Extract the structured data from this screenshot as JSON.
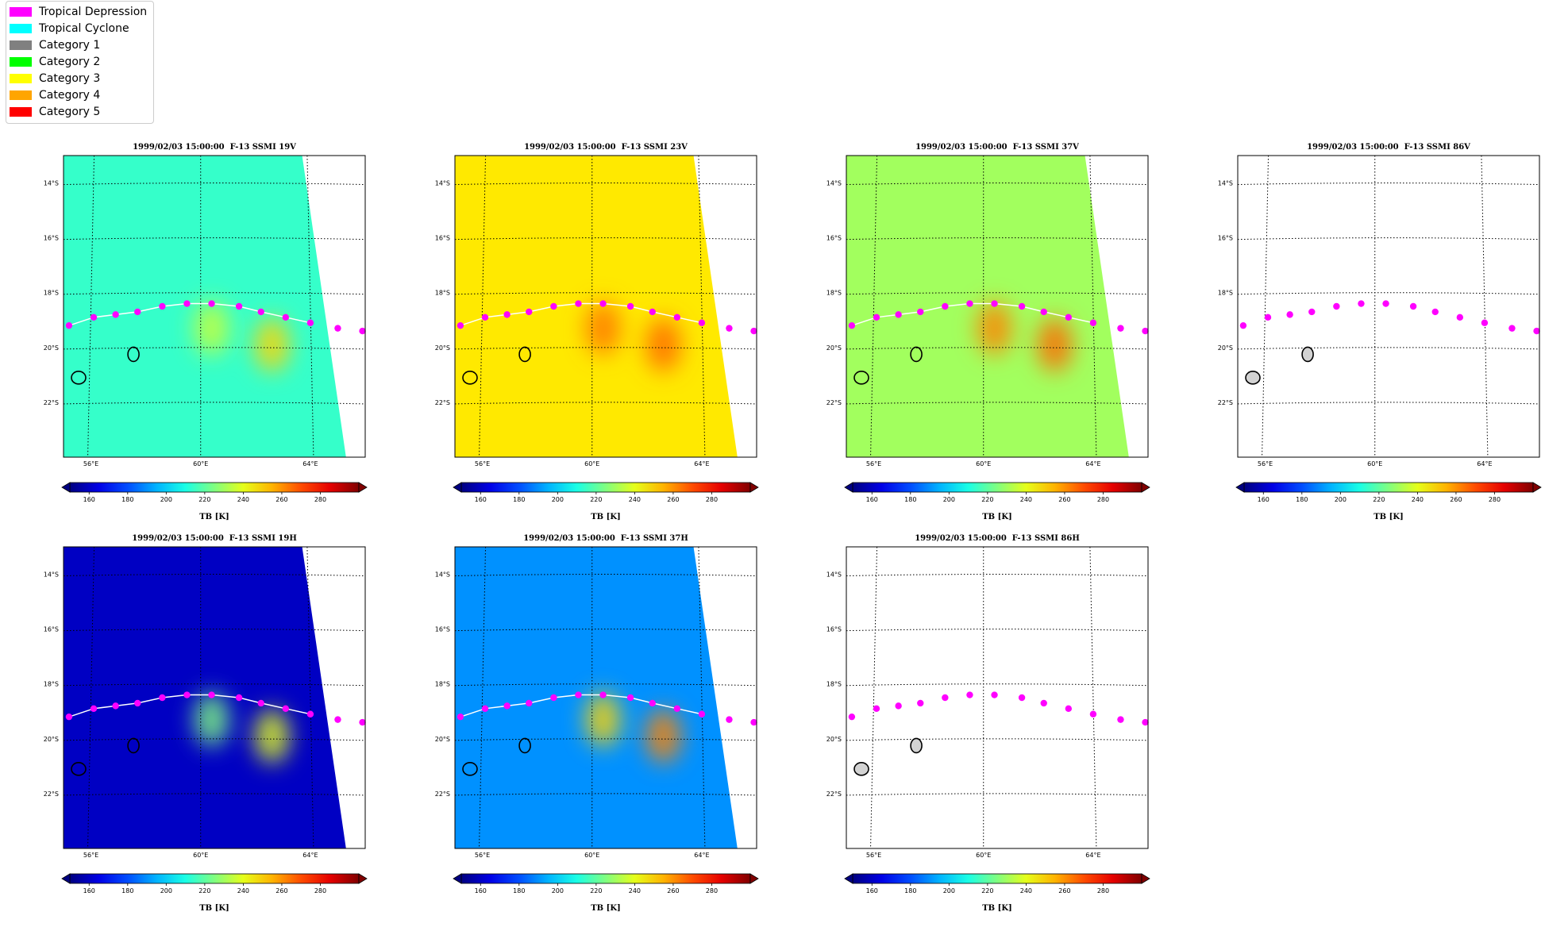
{
  "legend": {
    "items": [
      {
        "label": "Tropical Depression",
        "color": "#ff00ff"
      },
      {
        "label": "Tropical Cyclone",
        "color": "#00ffff"
      },
      {
        "label": "Category 1",
        "color": "#808080"
      },
      {
        "label": "Category 2",
        "color": "#00ff00"
      },
      {
        "label": "Category 3",
        "color": "#ffff00"
      },
      {
        "label": "Category 4",
        "color": "#ffa500"
      },
      {
        "label": "Category 5",
        "color": "#ff0000"
      }
    ]
  },
  "chart_data": [
    {
      "type": "heatmap",
      "title": "1999/02/03 15:00:00  F-13 SSMI 19V",
      "colorbar_label": "TB [K]",
      "colorbar_ticks": [
        160,
        180,
        200,
        220,
        240,
        260,
        280
      ],
      "colormap": "jet",
      "xlim": [
        55,
        66
      ],
      "ylim": [
        -24,
        -13
      ],
      "x_ticks": [
        "56°E",
        "60°E",
        "64°E"
      ],
      "y_ticks": [
        "14°S",
        "16°S",
        "18°S",
        "20°S",
        "22°S"
      ],
      "has_data": true,
      "base_tb": 214,
      "swath": true,
      "hotspots": [
        {
          "lon": 60.4,
          "lat": -19.3,
          "tb": 236
        },
        {
          "lon": 62.6,
          "lat": -19.9,
          "tb": 250
        }
      ],
      "track_color": "#ff00ff",
      "track": [
        {
          "lon": 55.2,
          "lat": -19.2
        },
        {
          "lon": 56.1,
          "lat": -18.9
        },
        {
          "lon": 56.9,
          "lat": -18.8
        },
        {
          "lon": 57.7,
          "lat": -18.7
        },
        {
          "lon": 58.6,
          "lat": -18.5
        },
        {
          "lon": 59.5,
          "lat": -18.4
        },
        {
          "lon": 60.4,
          "lat": -18.4
        },
        {
          "lon": 61.4,
          "lat": -18.5
        },
        {
          "lon": 62.2,
          "lat": -18.7
        },
        {
          "lon": 63.1,
          "lat": -18.9
        },
        {
          "lon": 64.0,
          "lat": -19.1
        },
        {
          "lon": 65.0,
          "lat": -19.3
        },
        {
          "lon": 65.9,
          "lat": -19.4
        }
      ]
    },
    {
      "type": "heatmap",
      "title": "1999/02/03 15:00:00  F-13 SSMI 23V",
      "colorbar_label": "TB [K]",
      "colorbar_ticks": [
        160,
        180,
        200,
        220,
        240,
        260,
        280
      ],
      "colormap": "jet",
      "xlim": [
        55,
        66
      ],
      "ylim": [
        -24,
        -13
      ],
      "x_ticks": [
        "56°E",
        "60°E",
        "64°E"
      ],
      "y_ticks": [
        "14°S",
        "16°S",
        "18°S",
        "20°S",
        "22°S"
      ],
      "has_data": true,
      "base_tb": 247,
      "swath": true,
      "hotspots": [
        {
          "lon": 60.4,
          "lat": -19.3,
          "tb": 264
        },
        {
          "lon": 62.6,
          "lat": -19.9,
          "tb": 266
        }
      ],
      "track_color": "#ff00ff",
      "track": [
        {
          "lon": 55.2,
          "lat": -19.2
        },
        {
          "lon": 56.1,
          "lat": -18.9
        },
        {
          "lon": 56.9,
          "lat": -18.8
        },
        {
          "lon": 57.7,
          "lat": -18.7
        },
        {
          "lon": 58.6,
          "lat": -18.5
        },
        {
          "lon": 59.5,
          "lat": -18.4
        },
        {
          "lon": 60.4,
          "lat": -18.4
        },
        {
          "lon": 61.4,
          "lat": -18.5
        },
        {
          "lon": 62.2,
          "lat": -18.7
        },
        {
          "lon": 63.1,
          "lat": -18.9
        },
        {
          "lon": 64.0,
          "lat": -19.1
        },
        {
          "lon": 65.0,
          "lat": -19.3
        },
        {
          "lon": 65.9,
          "lat": -19.4
        }
      ]
    },
    {
      "type": "heatmap",
      "title": "1999/02/03 15:00:00  F-13 SSMI 37V",
      "colorbar_label": "TB [K]",
      "colorbar_ticks": [
        160,
        180,
        200,
        220,
        240,
        260,
        280
      ],
      "colormap": "jet",
      "xlim": [
        55,
        66
      ],
      "ylim": [
        -24,
        -13
      ],
      "x_ticks": [
        "56°E",
        "60°E",
        "64°E"
      ],
      "y_ticks": [
        "14°S",
        "16°S",
        "18°S",
        "20°S",
        "22°S"
      ],
      "has_data": true,
      "base_tb": 230,
      "swath": true,
      "hotspots": [
        {
          "lon": 60.4,
          "lat": -19.3,
          "tb": 262
        },
        {
          "lon": 62.6,
          "lat": -19.9,
          "tb": 266
        }
      ],
      "track_color": "#ff00ff",
      "track": [
        {
          "lon": 55.2,
          "lat": -19.2
        },
        {
          "lon": 56.1,
          "lat": -18.9
        },
        {
          "lon": 56.9,
          "lat": -18.8
        },
        {
          "lon": 57.7,
          "lat": -18.7
        },
        {
          "lon": 58.6,
          "lat": -18.5
        },
        {
          "lon": 59.5,
          "lat": -18.4
        },
        {
          "lon": 60.4,
          "lat": -18.4
        },
        {
          "lon": 61.4,
          "lat": -18.5
        },
        {
          "lon": 62.2,
          "lat": -18.7
        },
        {
          "lon": 63.1,
          "lat": -18.9
        },
        {
          "lon": 64.0,
          "lat": -19.1
        },
        {
          "lon": 65.0,
          "lat": -19.3
        },
        {
          "lon": 65.9,
          "lat": -19.4
        }
      ]
    },
    {
      "type": "heatmap",
      "title": "1999/02/03 15:00:00  F-13 SSMI 86V",
      "colorbar_label": "TB [K]",
      "colorbar_ticks": [
        160,
        180,
        200,
        220,
        240,
        260,
        280
      ],
      "colormap": "jet",
      "xlim": [
        55,
        66
      ],
      "ylim": [
        -24,
        -13
      ],
      "x_ticks": [
        "56°E",
        "60°E",
        "64°E"
      ],
      "y_ticks": [
        "14°S",
        "16°S",
        "18°S",
        "20°S",
        "22°S"
      ],
      "has_data": false,
      "track_color": "#ff00ff",
      "track": [
        {
          "lon": 55.2,
          "lat": -19.2
        },
        {
          "lon": 56.1,
          "lat": -18.9
        },
        {
          "lon": 56.9,
          "lat": -18.8
        },
        {
          "lon": 57.7,
          "lat": -18.7
        },
        {
          "lon": 58.6,
          "lat": -18.5
        },
        {
          "lon": 59.5,
          "lat": -18.4
        },
        {
          "lon": 60.4,
          "lat": -18.4
        },
        {
          "lon": 61.4,
          "lat": -18.5
        },
        {
          "lon": 62.2,
          "lat": -18.7
        },
        {
          "lon": 63.1,
          "lat": -18.9
        },
        {
          "lon": 64.0,
          "lat": -19.1
        },
        {
          "lon": 65.0,
          "lat": -19.3
        },
        {
          "lon": 65.9,
          "lat": -19.4
        }
      ]
    },
    {
      "type": "heatmap",
      "title": "1999/02/03 15:00:00  F-13 SSMI 19H",
      "colorbar_label": "TB [K]",
      "colorbar_ticks": [
        160,
        180,
        200,
        220,
        240,
        260,
        280
      ],
      "colormap": "jet",
      "xlim": [
        55,
        66
      ],
      "ylim": [
        -24,
        -13
      ],
      "x_ticks": [
        "56°E",
        "60°E",
        "64°E"
      ],
      "y_ticks": [
        "14°S",
        "16°S",
        "18°S",
        "20°S",
        "22°S"
      ],
      "has_data": true,
      "base_tb": 160,
      "swath": true,
      "hotspots": [
        {
          "lon": 60.4,
          "lat": -19.3,
          "tb": 225
        },
        {
          "lon": 62.6,
          "lat": -19.9,
          "tb": 240
        }
      ],
      "track_color": "#ff00ff",
      "track": [
        {
          "lon": 55.2,
          "lat": -19.2
        },
        {
          "lon": 56.1,
          "lat": -18.9
        },
        {
          "lon": 56.9,
          "lat": -18.8
        },
        {
          "lon": 57.7,
          "lat": -18.7
        },
        {
          "lon": 58.6,
          "lat": -18.5
        },
        {
          "lon": 59.5,
          "lat": -18.4
        },
        {
          "lon": 60.4,
          "lat": -18.4
        },
        {
          "lon": 61.4,
          "lat": -18.5
        },
        {
          "lon": 62.2,
          "lat": -18.7
        },
        {
          "lon": 63.1,
          "lat": -18.9
        },
        {
          "lon": 64.0,
          "lat": -19.1
        },
        {
          "lon": 65.0,
          "lat": -19.3
        },
        {
          "lon": 65.9,
          "lat": -19.4
        }
      ]
    },
    {
      "type": "heatmap",
      "title": "1999/02/03 15:00:00  F-13 SSMI 37H",
      "colorbar_label": "TB [K]",
      "colorbar_ticks": [
        160,
        180,
        200,
        220,
        240,
        260,
        280
      ],
      "colormap": "jet",
      "xlim": [
        55,
        66
      ],
      "ylim": [
        -24,
        -13
      ],
      "x_ticks": [
        "56°E",
        "60°E",
        "64°E"
      ],
      "y_ticks": [
        "14°S",
        "16°S",
        "18°S",
        "20°S",
        "22°S"
      ],
      "has_data": true,
      "base_tb": 190,
      "swath": true,
      "hotspots": [
        {
          "lon": 60.4,
          "lat": -19.3,
          "tb": 250
        },
        {
          "lon": 62.6,
          "lat": -19.9,
          "tb": 262
        }
      ],
      "track_color": "#ff00ff",
      "track": [
        {
          "lon": 55.2,
          "lat": -19.2
        },
        {
          "lon": 56.1,
          "lat": -18.9
        },
        {
          "lon": 56.9,
          "lat": -18.8
        },
        {
          "lon": 57.7,
          "lat": -18.7
        },
        {
          "lon": 58.6,
          "lat": -18.5
        },
        {
          "lon": 59.5,
          "lat": -18.4
        },
        {
          "lon": 60.4,
          "lat": -18.4
        },
        {
          "lon": 61.4,
          "lat": -18.5
        },
        {
          "lon": 62.2,
          "lat": -18.7
        },
        {
          "lon": 63.1,
          "lat": -18.9
        },
        {
          "lon": 64.0,
          "lat": -19.1
        },
        {
          "lon": 65.0,
          "lat": -19.3
        },
        {
          "lon": 65.9,
          "lat": -19.4
        }
      ]
    },
    {
      "type": "heatmap",
      "title": "1999/02/03 15:00:00  F-13 SSMI 86H",
      "colorbar_label": "TB [K]",
      "colorbar_ticks": [
        160,
        180,
        200,
        220,
        240,
        260,
        280
      ],
      "colormap": "jet",
      "xlim": [
        55,
        66
      ],
      "ylim": [
        -24,
        -13
      ],
      "x_ticks": [
        "56°E",
        "60°E",
        "64°E"
      ],
      "y_ticks": [
        "14°S",
        "16°S",
        "18°S",
        "20°S",
        "22°S"
      ],
      "has_data": false,
      "track_color": "#ff00ff",
      "track": [
        {
          "lon": 55.2,
          "lat": -19.2
        },
        {
          "lon": 56.1,
          "lat": -18.9
        },
        {
          "lon": 56.9,
          "lat": -18.8
        },
        {
          "lon": 57.7,
          "lat": -18.7
        },
        {
          "lon": 58.6,
          "lat": -18.5
        },
        {
          "lon": 59.5,
          "lat": -18.4
        },
        {
          "lon": 60.4,
          "lat": -18.4
        },
        {
          "lon": 61.4,
          "lat": -18.5
        },
        {
          "lon": 62.2,
          "lat": -18.7
        },
        {
          "lon": 63.1,
          "lat": -18.9
        },
        {
          "lon": 64.0,
          "lat": -19.1
        },
        {
          "lon": 65.0,
          "lat": -19.3
        },
        {
          "lon": 65.9,
          "lat": -19.4
        }
      ]
    }
  ]
}
